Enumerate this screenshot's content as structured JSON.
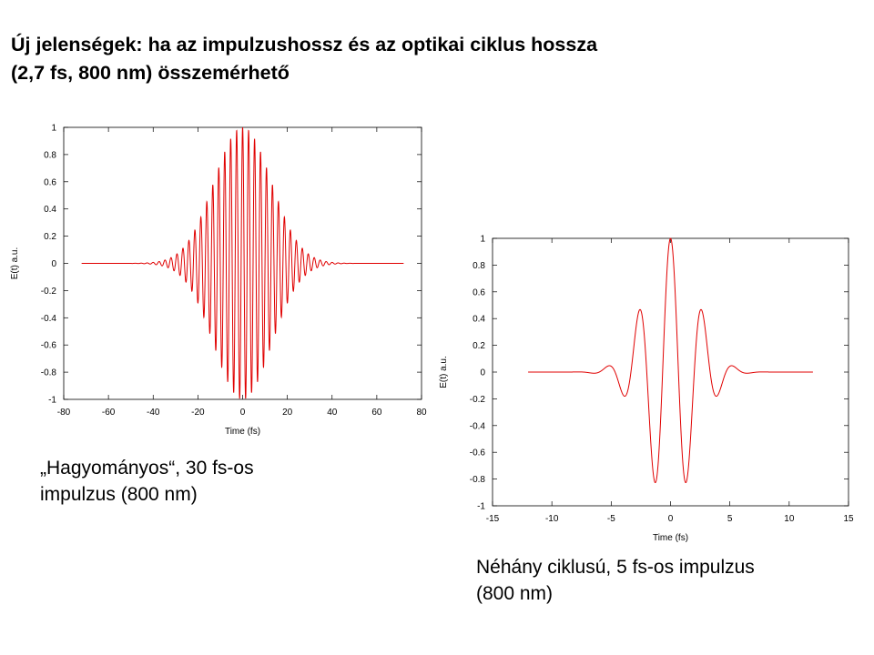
{
  "slide": {
    "title_line1": "Új jelenségek: ha az impulzushossz és az optikai ciklus hossza",
    "title_line2": "(2,7 fs, 800 nm) összemérhető",
    "caption_left_line1": "„Hagyományos“, 30 fs-os",
    "caption_left_line2": "impulzus (800 nm)",
    "caption_right_line1": "Néhány ciklusú, 5 fs-os impulzus",
    "caption_right_line2": "(800 nm)"
  },
  "chart_data": [
    {
      "type": "line",
      "xlabel": "Time (fs)",
      "ylabel": "E(t) a.u.",
      "xlim": [
        -80,
        80
      ],
      "ylim": [
        -1,
        1
      ],
      "xticks": [
        -80,
        -60,
        -40,
        -20,
        0,
        20,
        40,
        60,
        80
      ],
      "yticks": [
        1,
        0.8,
        0.6,
        0.4,
        0.2,
        0,
        -0.2,
        -0.4,
        -0.6,
        -0.8,
        -1
      ],
      "ytick_labels": [
        "1",
        "0.8",
        "0.6",
        "0.4",
        "0.2",
        "0",
        "-0.2",
        "-0.4",
        "-0.6",
        "-0.8",
        "-1"
      ],
      "x_range_drawn": [
        -72,
        72
      ],
      "pulse_fwhm_fs": 30,
      "period_fs": 2.67,
      "line_color": "#e00000",
      "grid": false,
      "legend": "none"
    },
    {
      "type": "line",
      "xlabel": "Time (fs)",
      "ylabel": "E(t) a.u.",
      "xlim": [
        -15,
        15
      ],
      "ylim": [
        -1,
        1
      ],
      "xticks": [
        -15,
        -10,
        -5,
        0,
        5,
        10,
        15
      ],
      "yticks": [
        1,
        0.8,
        0.6,
        0.4,
        0.2,
        0,
        -0.2,
        -0.4,
        -0.6,
        -0.8,
        -1
      ],
      "ytick_labels": [
        "1",
        "0.8",
        "0.6",
        "0.4",
        "0.2",
        "0",
        "-0.2",
        "-0.4",
        "-0.6",
        "-0.8",
        "-1"
      ],
      "x_range_drawn": [
        -12,
        12
      ],
      "pulse_fwhm_fs": 5,
      "period_fs": 2.67,
      "line_color": "#e00000",
      "grid": false,
      "legend": "none"
    }
  ]
}
